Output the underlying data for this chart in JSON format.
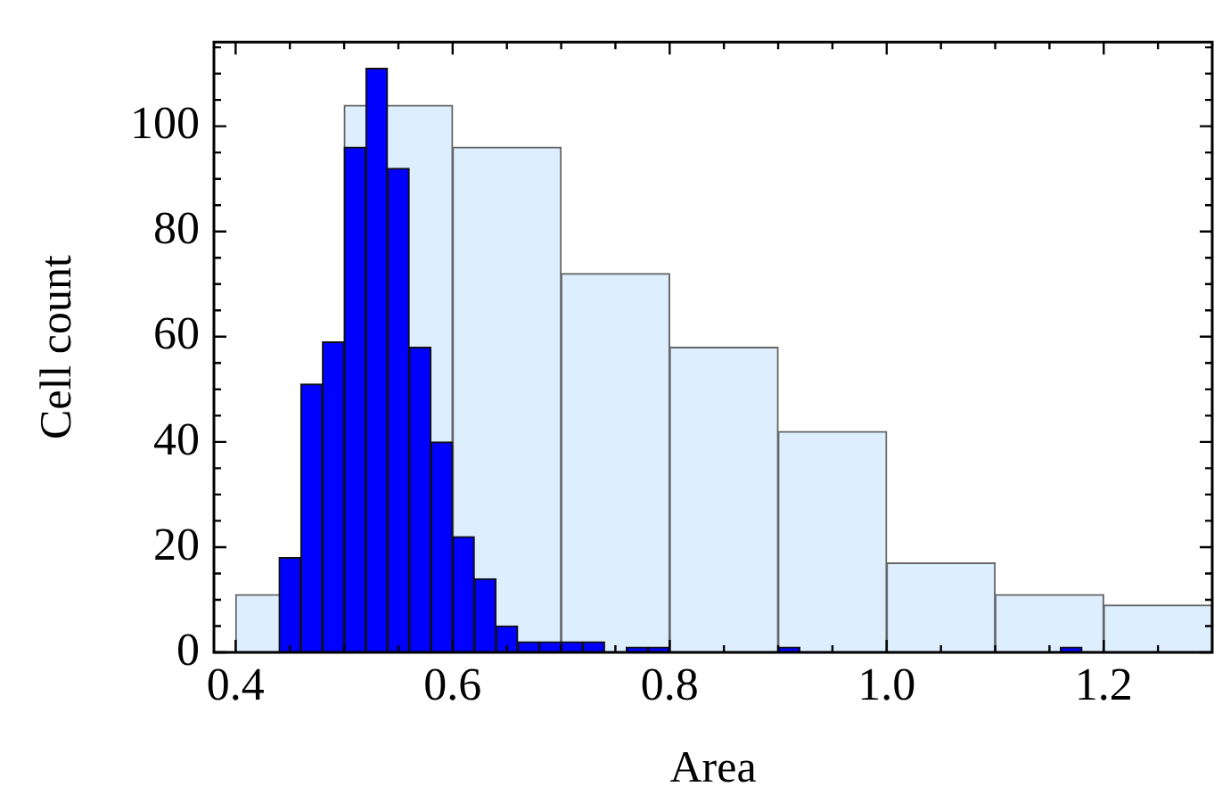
{
  "chart_data": {
    "type": "histogram",
    "xlabel": "Area",
    "ylabel": "Cell count",
    "xlim": [
      0.38,
      1.3
    ],
    "ylim": [
      0,
      116
    ],
    "xticks": [
      0.4,
      {
        "value": 0.45,
        "label": null
      },
      {
        "value": 0.5,
        "label": null
      },
      {
        "value": 0.55,
        "label": null
      },
      0.6,
      {
        "value": 0.65,
        "label": null
      },
      {
        "value": 0.7,
        "label": null
      },
      {
        "value": 0.75,
        "label": null
      },
      0.8,
      {
        "value": 0.85,
        "label": null
      },
      {
        "value": 0.9,
        "label": null
      },
      {
        "value": 0.95,
        "label": null
      },
      {
        "value": 1,
        "label": "1.0"
      },
      {
        "value": 1.05,
        "label": null
      },
      {
        "value": 1.1,
        "label": null
      },
      {
        "value": 1.15,
        "label": null
      },
      1.2,
      {
        "value": 1.25,
        "label": null
      }
    ],
    "yticks": [
      0,
      {
        "value": 5,
        "label": null
      },
      {
        "value": 10,
        "label": null
      },
      {
        "value": 15,
        "label": null
      },
      20,
      {
        "value": 25,
        "label": null
      },
      {
        "value": 30,
        "label": null
      },
      {
        "value": 35,
        "label": null
      },
      40,
      {
        "value": 45,
        "label": null
      },
      {
        "value": 50,
        "label": null
      },
      {
        "value": 55,
        "label": null
      },
      60,
      {
        "value": 65,
        "label": null
      },
      {
        "value": 70,
        "label": null
      },
      {
        "value": 75,
        "label": null
      },
      80,
      {
        "value": 85,
        "label": null
      },
      {
        "value": 90,
        "label": null
      },
      {
        "value": 95,
        "label": null
      },
      100,
      {
        "value": 105,
        "label": null
      },
      {
        "value": 110,
        "label": null
      },
      {
        "value": 115,
        "label": null
      }
    ],
    "bins": [
      0.4,
      0.5,
      0.6,
      0.7,
      0.8,
      0.9,
      1.0,
      1.1,
      1.2,
      1.3
    ],
    "series": [
      {
        "color": "#ddeeff",
        "values": [
          11,
          104,
          96,
          72,
          58,
          42,
          17,
          11,
          9
        ]
      },
      {
        "color": "#0000ff",
        "bins": [
          0.44,
          0.46,
          0.48,
          0.5,
          0.52,
          0.54,
          0.56,
          0.58,
          0.6,
          0.62,
          0.64,
          0.66,
          0.68,
          0.7,
          0.72,
          0.74,
          0.76,
          0.78,
          0.8,
          0.82,
          0.84,
          0.86,
          0.88,
          0.9,
          0.92,
          0.94,
          0.96,
          0.98,
          1.0,
          1.02,
          1.04,
          1.06,
          1.08,
          1.1,
          1.12,
          1.14,
          1.16,
          1.18
        ],
        "values": [
          18,
          51,
          59,
          96,
          111,
          92,
          58,
          40,
          22,
          14,
          5,
          2,
          2,
          2,
          2,
          0,
          1,
          1,
          0,
          0,
          0,
          0,
          0,
          1,
          0,
          0,
          0,
          0,
          0,
          0,
          0,
          0,
          0,
          0,
          0,
          0,
          1
        ]
      }
    ]
  }
}
